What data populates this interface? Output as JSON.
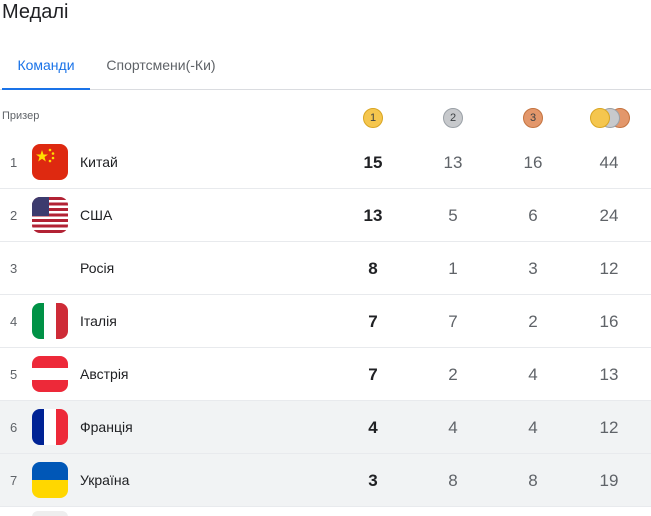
{
  "title": "Медалі",
  "tabs": [
    {
      "label": "Команди",
      "active": true
    },
    {
      "label": "Спортсмени(-Ки)",
      "active": false
    }
  ],
  "table": {
    "rank_header": "Призер",
    "medal_headers": {
      "gold": "1",
      "silver": "2",
      "bronze": "3"
    },
    "rows": [
      {
        "rank": "1",
        "country": "Китай",
        "flag": "china-flag-icon",
        "gold": "15",
        "silver": "13",
        "bronze": "16",
        "total": "44"
      },
      {
        "rank": "2",
        "country": "США",
        "flag": "usa-flag-icon",
        "gold": "13",
        "silver": "5",
        "bronze": "6",
        "total": "24"
      },
      {
        "rank": "3",
        "country": "Росія",
        "flag": "",
        "gold": "8",
        "silver": "1",
        "bronze": "3",
        "total": "12"
      },
      {
        "rank": "4",
        "country": "Італія",
        "flag": "italy-flag-icon",
        "gold": "7",
        "silver": "7",
        "bronze": "2",
        "total": "16"
      },
      {
        "rank": "5",
        "country": "Австрія",
        "flag": "austria-flag-icon",
        "gold": "7",
        "silver": "2",
        "bronze": "4",
        "total": "13"
      },
      {
        "rank": "6",
        "country": "Франція",
        "flag": "france-flag-icon",
        "gold": "4",
        "silver": "4",
        "bronze": "4",
        "total": "12"
      },
      {
        "rank": "7",
        "country": "Україна",
        "flag": "ukraine-flag-icon",
        "gold": "3",
        "silver": "8",
        "bronze": "8",
        "total": "19"
      }
    ]
  },
  "colors": {
    "accent": "#1a73e8",
    "gold": "#f5c64e",
    "silver": "#c7c9cc",
    "bronze": "#e3976b",
    "shaded_row": "#f1f3f4"
  }
}
